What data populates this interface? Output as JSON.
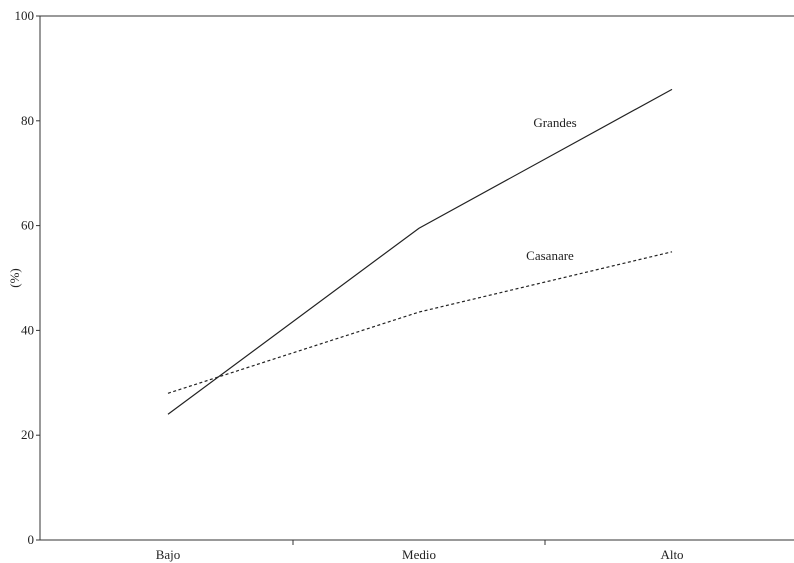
{
  "chart_data": {
    "type": "line",
    "title": "",
    "xlabel": "",
    "ylabel": "(%)",
    "categories": [
      "Bajo",
      "Medio",
      "Alto"
    ],
    "yticks": [
      0,
      20,
      40,
      60,
      80,
      100
    ],
    "ylim": [
      0,
      100
    ],
    "grid": false,
    "legend": "none",
    "series": [
      {
        "name": "Grandes",
        "values": [
          24,
          59.5,
          86
        ],
        "line_style": "solid",
        "color": "#222222"
      },
      {
        "name": "Casanare",
        "values": [
          28,
          43.5,
          55
        ],
        "line_style": "dashed",
        "color": "#222222"
      }
    ]
  }
}
